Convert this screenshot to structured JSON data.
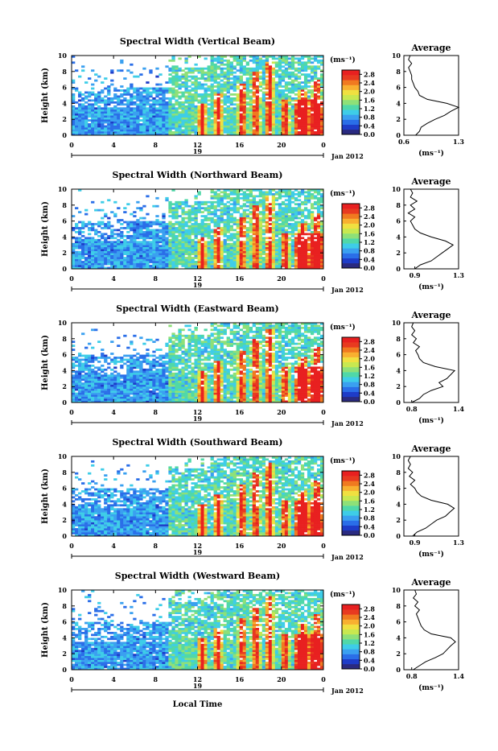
{
  "colors": {
    "scale": [
      "#2a2a80",
      "#1e3cc8",
      "#2a6ee8",
      "#3aa0f0",
      "#3ecde8",
      "#50d8a8",
      "#8ee078",
      "#c8e850",
      "#f0e040",
      "#f8b030",
      "#f07a20",
      "#e83a20",
      "#e82020"
    ]
  },
  "chart_data": {
    "type": "heatmap",
    "common": {
      "xlabel_bottom": "Local Time",
      "x_ticks": [
        "0",
        "4",
        "8",
        "12",
        "16",
        "20",
        "0"
      ],
      "x_range": [
        0,
        24
      ],
      "day_label": "19",
      "date_label": "Jan 2012",
      "ylabel": "Height (km)",
      "y_ticks": [
        "0",
        "2",
        "4",
        "6",
        "8",
        "10"
      ],
      "y_range": [
        0,
        10
      ],
      "colorbar_unit": "(ms⁻¹)",
      "colorbar_ticks": [
        "0.0",
        "0.4",
        "0.8",
        "1.2",
        "1.6",
        "2.0",
        "2.4",
        "2.8"
      ],
      "colorbar_range": [
        0.0,
        3.0
      ],
      "profile_title": "Average",
      "profile_unit": "(ms⁻¹)"
    },
    "panels": [
      {
        "title": "Spectral Width (Vertical Beam)",
        "profile_xticks": [
          "0.6",
          "1.3"
        ],
        "profile_xrange": [
          0.6,
          1.3
        ],
        "profile": {
          "height": [
            0,
            0.5,
            1,
            1.5,
            2,
            2.5,
            3,
            3.5,
            4,
            4.5,
            5,
            5.5,
            6,
            6.5,
            7,
            7.5,
            8,
            8.5,
            9,
            9.5,
            10
          ],
          "value": [
            0.75,
            0.8,
            0.82,
            0.9,
            1.0,
            1.12,
            1.2,
            1.3,
            1.15,
            0.9,
            0.8,
            0.78,
            0.74,
            0.72,
            0.7,
            0.7,
            0.68,
            0.66,
            0.7,
            0.66,
            0.68
          ]
        }
      },
      {
        "title": "Spectral Width (Northward Beam)",
        "profile_xticks": [
          "0.9",
          "1.3"
        ],
        "profile_xrange": [
          0.8,
          1.3
        ],
        "profile": {
          "height": [
            0,
            0.5,
            1,
            1.5,
            2,
            2.5,
            3,
            3.5,
            4,
            4.5,
            5,
            5.5,
            6,
            6.5,
            7,
            7.5,
            8,
            8.5,
            9,
            9.5,
            10
          ],
          "value": [
            0.9,
            0.95,
            1.05,
            1.1,
            1.15,
            1.2,
            1.25,
            1.18,
            1.05,
            0.95,
            0.9,
            0.88,
            0.86,
            0.9,
            0.84,
            0.9,
            0.86,
            0.92,
            0.86,
            0.88,
            0.86
          ]
        }
      },
      {
        "title": "Spectral Width (Eastward Beam)",
        "profile_xticks": [
          "0.8",
          "1.4"
        ],
        "profile_xrange": [
          0.7,
          1.4
        ],
        "profile": {
          "height": [
            0,
            0.5,
            1,
            1.5,
            2,
            2.5,
            3,
            3.5,
            4,
            4.5,
            5,
            5.5,
            6,
            6.5,
            7,
            7.5,
            8,
            8.5,
            9,
            9.5,
            10
          ],
          "value": [
            0.8,
            0.9,
            0.95,
            1.05,
            1.2,
            1.15,
            1.25,
            1.3,
            1.35,
            1.1,
            0.95,
            0.9,
            0.88,
            0.85,
            0.9,
            0.82,
            0.86,
            0.8,
            0.84,
            0.8,
            0.82
          ]
        }
      },
      {
        "title": "Spectral Width (Southward Beam)",
        "profile_xticks": [
          "0.9",
          "1.3"
        ],
        "profile_xrange": [
          0.8,
          1.3
        ],
        "profile": {
          "height": [
            0,
            0.5,
            1,
            1.5,
            2,
            2.5,
            3,
            3.5,
            4,
            4.5,
            5,
            5.5,
            6,
            6.5,
            7,
            7.5,
            8,
            8.5,
            9,
            9.5,
            10
          ],
          "value": [
            0.88,
            0.92,
            1.0,
            1.05,
            1.1,
            1.18,
            1.22,
            1.26,
            1.2,
            1.05,
            0.96,
            0.92,
            0.9,
            0.86,
            0.9,
            0.85,
            0.88,
            0.84,
            0.86,
            0.84,
            0.86
          ]
        }
      },
      {
        "title": "Spectral Width (Westward Beam)",
        "profile_xticks": [
          "0.8",
          "1.4"
        ],
        "profile_xrange": [
          0.7,
          1.4
        ],
        "profile": {
          "height": [
            0,
            0.5,
            1,
            1.5,
            2,
            2.5,
            3,
            3.5,
            4,
            4.5,
            5,
            5.5,
            6,
            6.5,
            7,
            7.5,
            8,
            8.5,
            9,
            9.5,
            10
          ],
          "value": [
            0.82,
            0.9,
            0.98,
            1.1,
            1.2,
            1.25,
            1.3,
            1.36,
            1.3,
            1.05,
            0.96,
            0.92,
            0.9,
            0.88,
            0.86,
            0.9,
            0.84,
            0.88,
            0.82,
            0.86,
            0.84
          ]
        }
      }
    ]
  }
}
